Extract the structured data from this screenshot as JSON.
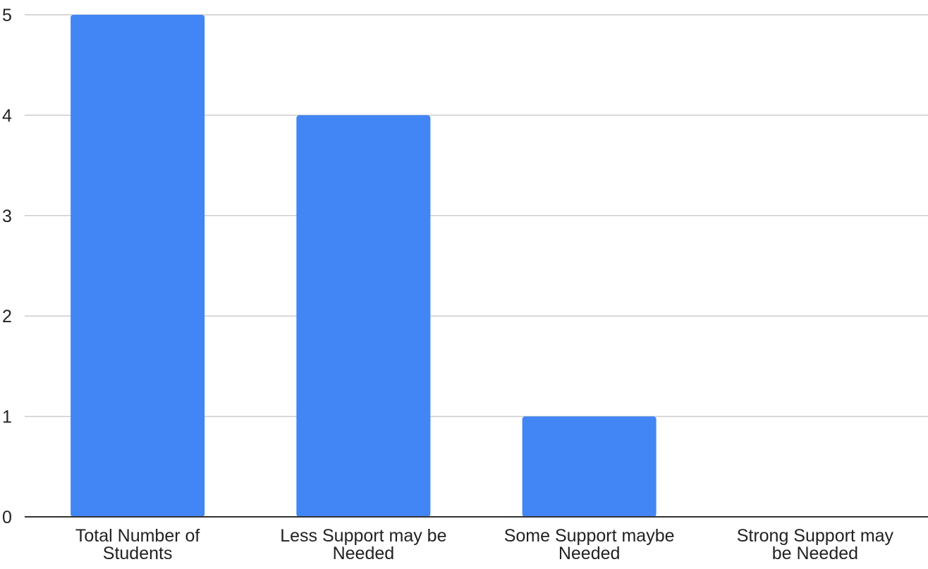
{
  "chart_data": {
    "type": "bar",
    "title": "",
    "xlabel": "",
    "ylabel": "",
    "categories": [
      [
        "Total Number of",
        "Students"
      ],
      [
        "Less Support may be",
        "Needed"
      ],
      [
        "Some Support maybe",
        "Needed"
      ],
      [
        "Strong Support may",
        "be Needed"
      ]
    ],
    "values": [
      5,
      4,
      1,
      0
    ],
    "ylim": [
      0,
      5
    ],
    "yticks": [
      "0",
      "1",
      "2",
      "3",
      "4",
      "5"
    ],
    "grid": true,
    "legend": "none",
    "colors": {
      "bar": "#4285f4",
      "grid": "#cccccc",
      "axis": "#333333"
    }
  }
}
